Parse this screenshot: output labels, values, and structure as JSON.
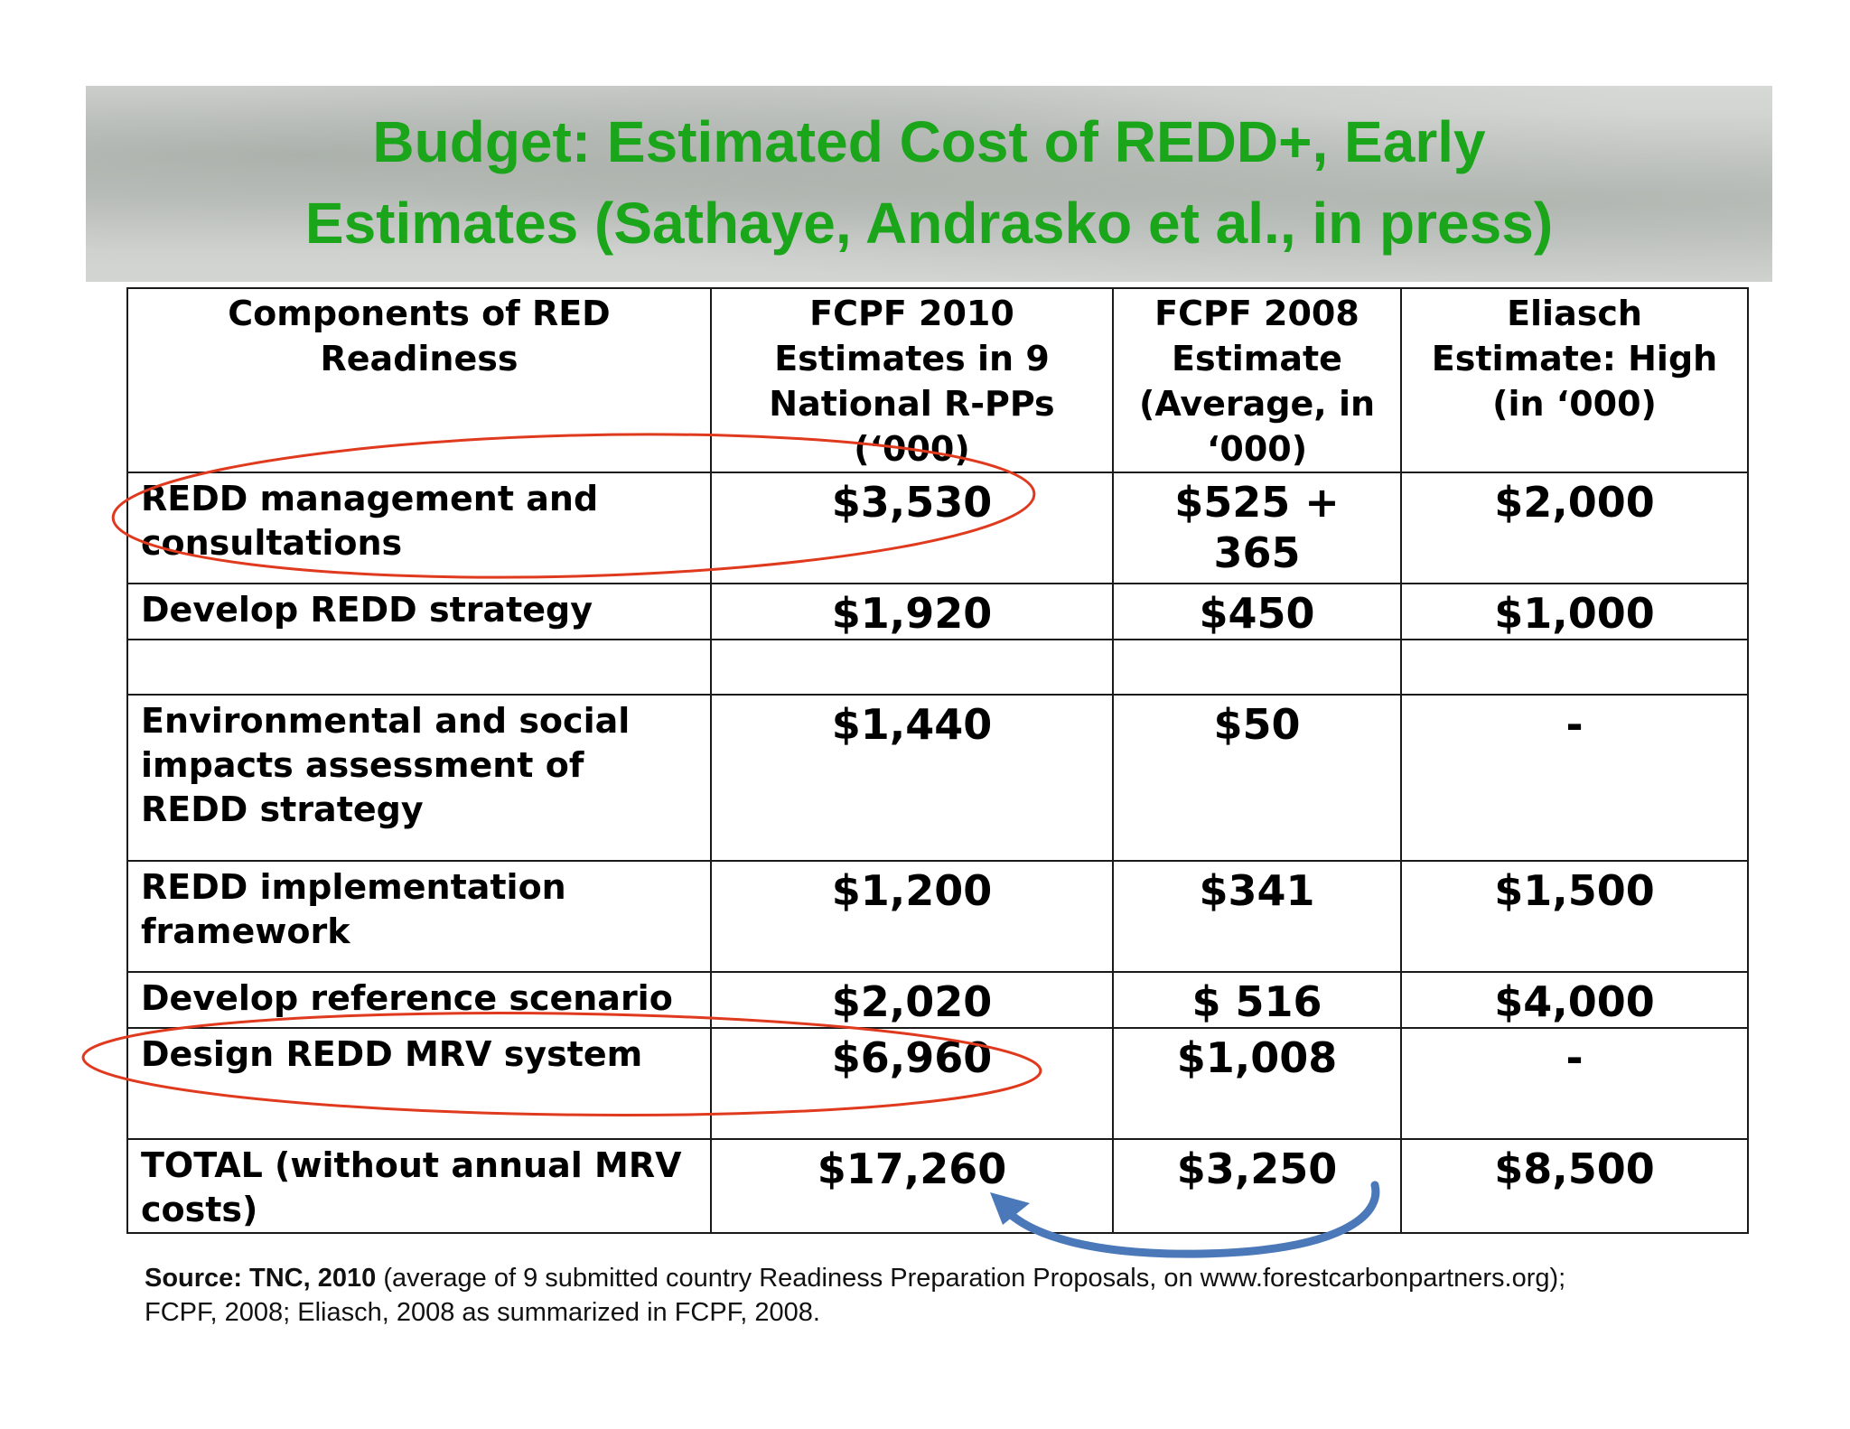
{
  "title_line1": "Budget:  Estimated Cost of REDD+, Early",
  "title_line2": "Estimates (Sathaye, Andrasko et al., in press)",
  "table": {
    "headers": [
      "Components of RED Readiness",
      "FCPF 2010 Estimates in 9 National R-PPs (‘000)",
      "FCPF 2008 Estimate (Average, in ‘000)",
      "Eliasch Estimate: High (in ‘000)"
    ],
    "rows": [
      {
        "label": "REDD management and consultations",
        "fcpf2010": "$3,530",
        "fcpf2008": "$525 + 365",
        "eliasch": "$2,000"
      },
      {
        "label": "Develop REDD strategy",
        "fcpf2010": "$1,920",
        "fcpf2008": "$450",
        "eliasch": "$1,000"
      },
      {
        "label": "",
        "fcpf2010": "",
        "fcpf2008": "",
        "eliasch": ""
      },
      {
        "label": "Environmental and social impacts assessment of REDD strategy",
        "fcpf2010": "$1,440",
        "fcpf2008": "$50",
        "eliasch": "-"
      },
      {
        "label": "REDD implementation framework",
        "fcpf2010": "$1,200",
        "fcpf2008": "$341",
        "eliasch": "$1,500"
      },
      {
        "label": "Develop reference scenario",
        "fcpf2010": "$2,020",
        "fcpf2008": "$ 516",
        "eliasch": "$4,000"
      },
      {
        "label": "Design REDD MRV system",
        "fcpf2010": "$6,960",
        "fcpf2008": "$1,008",
        "eliasch": "-"
      },
      {
        "label": "TOTAL (without annual MRV costs)",
        "fcpf2010": "$17,260",
        "fcpf2008": "$3,250",
        "eliasch": "$8,500"
      }
    ]
  },
  "source": {
    "bold_prefix": "Source:  TNC, 2010",
    "line1_rest": " (average of  9 submitted country Readiness Preparation Proposals, on www.forestcarbonpartners.org);",
    "line2": "FCPF, 2008; Eliasch, 2008 as summarized in FCPF, 2008."
  },
  "annotations": {
    "ellipse_color": "#e03a1e",
    "arrow_color": "#4a78b8"
  }
}
